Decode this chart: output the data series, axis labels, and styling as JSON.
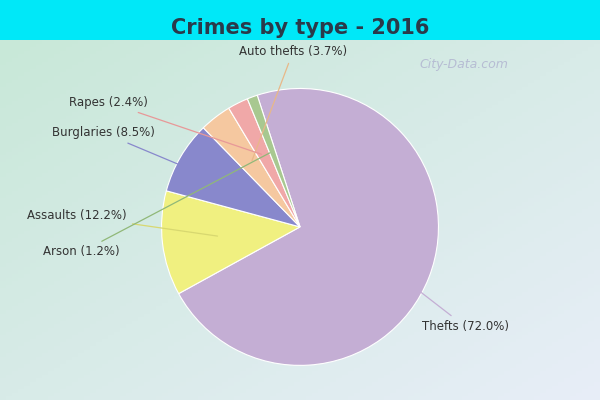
{
  "title": "Crimes by type - 2016",
  "labels": [
    "Thefts",
    "Assaults",
    "Burglaries",
    "Auto thefts",
    "Rapes",
    "Arson"
  ],
  "values": [
    72.0,
    12.2,
    8.5,
    3.7,
    2.4,
    1.2
  ],
  "colors": [
    "#c4aed4",
    "#f0f080",
    "#8888cc",
    "#f5c8a0",
    "#f0a8a8",
    "#a8c890"
  ],
  "label_texts": [
    "Thefts (72.0%)",
    "Assaults (12.2%)",
    "Burglaries (8.5%)",
    "Auto thefts (3.7%)",
    "Rapes (2.4%)",
    "Arson (1.2%)"
  ],
  "background_top": "#00e8f8",
  "background_main_tl": "#c8e8d8",
  "background_main_br": "#e8eef8",
  "title_fontsize": 15,
  "figsize": [
    6.0,
    4.0
  ],
  "dpi": 100,
  "startangle": 108,
  "label_fontsize": 8.5,
  "watermark": "City-Data.com"
}
